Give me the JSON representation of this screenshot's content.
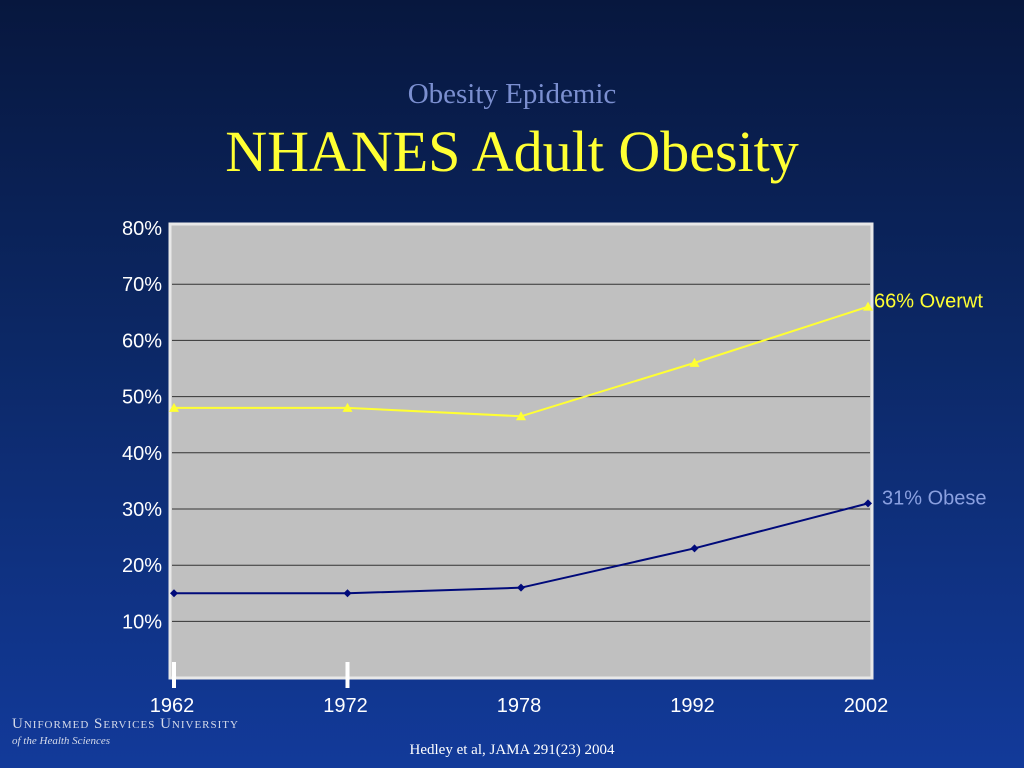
{
  "slide": {
    "subtitle": "Obesity Epidemic",
    "title": "NHANES Adult Obesity",
    "university": "Uniformed Services University",
    "university_sub": "of the Health Sciences",
    "citation": "Hedley et al, JAMA 291(23) 2004"
  },
  "colors": {
    "overweight": "#ffff33",
    "obese": "#000a7a",
    "obese_label": "#8aa0e0",
    "plot_bg": "#c0c0c0"
  },
  "chart_data": {
    "type": "line",
    "categories": [
      "1962",
      "1972",
      "1978",
      "1992",
      "2002"
    ],
    "yticks": [
      "10%",
      "20%",
      "30%",
      "40%",
      "50%",
      "60%",
      "70%",
      "80%"
    ],
    "ylim": [
      0,
      80
    ],
    "series": [
      {
        "name": "66% Overwt",
        "marker": "triangle",
        "values": [
          48,
          48,
          46.5,
          56,
          66
        ]
      },
      {
        "name": "31% Obese",
        "marker": "diamond",
        "values": [
          15,
          15,
          16,
          23,
          31
        ]
      }
    ],
    "grid": true,
    "highlighted_categories": [
      "1962",
      "1972"
    ]
  }
}
